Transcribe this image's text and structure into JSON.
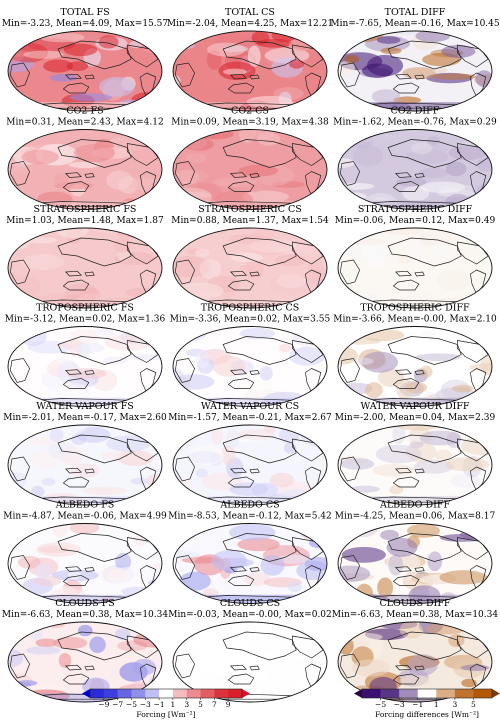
{
  "columns": [
    "FS",
    "CS",
    "DIFF"
  ],
  "panels": [
    {
      "title": "TOTAL FS",
      "stats": "Min=-3.23, Mean=4.09, Max=15.57",
      "scale": "forcing",
      "mean": 4.09,
      "min": -3.23,
      "max": 15.57
    },
    {
      "title": "TOTAL CS",
      "stats": "Min=-2.04, Mean=4.25, Max=12.21",
      "scale": "forcing",
      "mean": 4.25,
      "min": -2.04,
      "max": 12.21
    },
    {
      "title": "TOTAL DIFF",
      "stats": "Min=-7.65, Mean=-0.16, Max=10.45",
      "scale": "difference",
      "mean": -0.16,
      "min": -7.65,
      "max": 10.45
    },
    {
      "title": "CO2 FS",
      "stats": "Min=0.31, Mean=2.43, Max=4.12",
      "scale": "forcing",
      "mean": 2.43,
      "min": 0.31,
      "max": 4.12
    },
    {
      "title": "CO2 CS",
      "stats": "Min=0.09, Mean=3.19, Max=4.38",
      "scale": "forcing",
      "mean": 3.19,
      "min": 0.09,
      "max": 4.38
    },
    {
      "title": "CO2 DIFF",
      "stats": "Min=-1.62, Mean=-0.76, Max=0.29",
      "scale": "difference",
      "mean": -0.76,
      "min": -1.62,
      "max": 0.29
    },
    {
      "title": "STRATOSPHERIC FS",
      "stats": "Min=1.03, Mean=1.48, Max=1.87",
      "scale": "forcing",
      "mean": 1.48,
      "min": 1.03,
      "max": 1.87
    },
    {
      "title": "STRATOSPHERIC CS",
      "stats": "Min=0.88, Mean=1.37, Max=1.54",
      "scale": "forcing",
      "mean": 1.37,
      "min": 0.88,
      "max": 1.54
    },
    {
      "title": "STRATOSPHERIC DIFF",
      "stats": "Min=-0.06, Mean=0.12, Max=0.49",
      "scale": "difference",
      "mean": 0.12,
      "min": -0.06,
      "max": 0.49
    },
    {
      "title": "TROPOSPHERIC FS",
      "stats": "Min=-3.12, Mean=0.02, Max=1.36",
      "scale": "forcing",
      "mean": 0.02,
      "min": -3.12,
      "max": 1.36
    },
    {
      "title": "TROPOSPHERIC CS",
      "stats": "Min=-3.36, Mean=0.02, Max=3.55",
      "scale": "forcing",
      "mean": 0.02,
      "min": -3.36,
      "max": 3.55
    },
    {
      "title": "TROPOSPHERIC DIFF",
      "stats": "Min=-3.66, Mean=-0.00, Max=2.10",
      "scale": "difference",
      "mean": -0.0,
      "min": -3.66,
      "max": 2.1
    },
    {
      "title": "WATER VAPOUR FS",
      "stats": "Min=-2.01, Mean=-0.17, Max=2.60",
      "scale": "forcing",
      "mean": -0.17,
      "min": -2.01,
      "max": 2.6
    },
    {
      "title": "WATER VAPOUR CS",
      "stats": "Min=-1.57, Mean=-0.21, Max=2.67",
      "scale": "forcing",
      "mean": -0.21,
      "min": -1.57,
      "max": 2.67
    },
    {
      "title": "WATER VAPOUR DIFF",
      "stats": "Min=-2.00, Mean=0.04, Max=2.39",
      "scale": "difference",
      "mean": 0.04,
      "min": -2.0,
      "max": 2.39
    },
    {
      "title": "ALBEDO FS",
      "stats": "Min=-4.87, Mean=-0.06, Max=4.99",
      "scale": "forcing",
      "mean": -0.06,
      "min": -4.87,
      "max": 4.99
    },
    {
      "title": "ALBEDO CS",
      "stats": "Min=-8.53, Mean=-0.12, Max=5.42",
      "scale": "forcing",
      "mean": -0.12,
      "min": -8.53,
      "max": 5.42
    },
    {
      "title": "ALBEDO DIFF",
      "stats": "Min=-4.25, Mean=0.06, Max=8.17",
      "scale": "difference",
      "mean": 0.06,
      "min": -4.25,
      "max": 8.17
    },
    {
      "title": "CLOUDS FS",
      "stats": "Min=-6.63, Mean=0.38, Max=10.34",
      "scale": "forcing",
      "mean": 0.38,
      "min": -6.63,
      "max": 10.34
    },
    {
      "title": "CLOUDS CS",
      "stats": "Min=-0.03, Mean=-0.00, Max=0.02",
      "scale": "forcing",
      "mean": -0.0,
      "min": -0.03,
      "max": 0.02
    },
    {
      "title": "CLOUDS DIFF",
      "stats": "Min=-6.63, Mean=0.38, Max=10.34",
      "scale": "difference",
      "mean": 0.38,
      "min": -6.63,
      "max": 10.34
    }
  ],
  "colorbars": [
    {
      "id": "forcing",
      "label": "Forcing [Wm⁻²]",
      "ticks": [
        "−9",
        "−7",
        "−5",
        "−3",
        "−1",
        "1",
        "3",
        "5",
        "7",
        "9"
      ],
      "range": [
        -9,
        9
      ],
      "colors": {
        "neg": "#2b2bd9",
        "mid": "#ffffff",
        "pos": "#d9202a",
        "ext_low": "#0000cc",
        "ext_high": "#e0102a"
      }
    },
    {
      "id": "difference",
      "label": "Forcing differences [Wm⁻²]",
      "ticks": [
        "−5",
        "−3",
        "−1",
        "1",
        "3",
        "5"
      ],
      "range": [
        -5,
        5
      ],
      "colors": {
        "neg": "#3b0f70",
        "mid": "#ffffff",
        "pos": "#b35806",
        "ext_low": "#2d004b",
        "ext_high": "#7f3b08"
      }
    }
  ]
}
